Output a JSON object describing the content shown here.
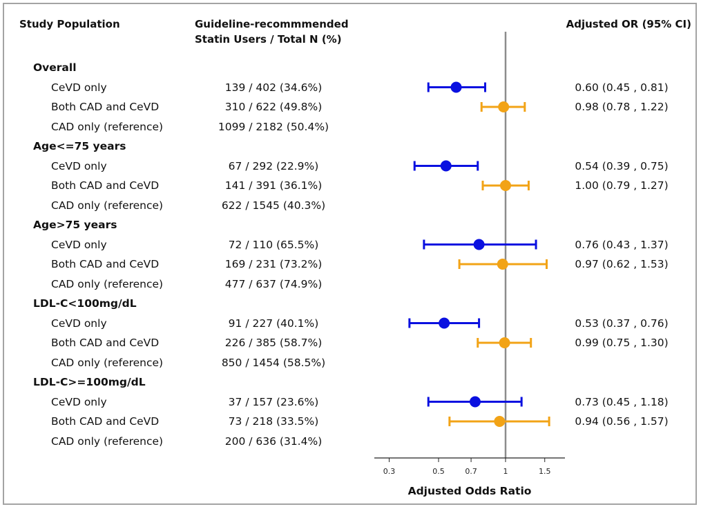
{
  "headers": {
    "population": "Study Population",
    "statin_line1": "Guideline-recommmended",
    "statin_line2": "Statin Users / Total N (%)",
    "or": "Adjusted OR (95% CI)"
  },
  "colors": {
    "cevd": "#0a10e0",
    "both": "#f2a316",
    "refline": "#8c8c8c",
    "frame": "#a3a3a3"
  },
  "rows": [
    {
      "type": "group",
      "label": "Overall"
    },
    {
      "type": "item",
      "label": "CeVD only",
      "count": "139 / 402 (34.6%)",
      "or_text": "0.60 (0.45 , 0.81)"
    },
    {
      "type": "item",
      "label": "Both CAD and CeVD",
      "count": "310 / 622 (49.8%)",
      "or_text": "0.98 (0.78 , 1.22)"
    },
    {
      "type": "item",
      "label": "CAD only (reference)",
      "count": "1099 / 2182 (50.4%)",
      "or_text": ""
    },
    {
      "type": "group",
      "label": "Age<=75 years"
    },
    {
      "type": "item",
      "label": "CeVD only",
      "count": "67 / 292 (22.9%)",
      "or_text": "0.54 (0.39 , 0.75)"
    },
    {
      "type": "item",
      "label": "Both CAD and CeVD",
      "count": "141 / 391 (36.1%)",
      "or_text": "1.00 (0.79 , 1.27)"
    },
    {
      "type": "item",
      "label": "CAD only (reference)",
      "count": "622 / 1545 (40.3%)",
      "or_text": ""
    },
    {
      "type": "group",
      "label": "Age>75 years"
    },
    {
      "type": "item",
      "label": "CeVD only",
      "count": "72 / 110 (65.5%)",
      "or_text": "0.76 (0.43 , 1.37)"
    },
    {
      "type": "item",
      "label": "Both CAD and CeVD",
      "count": "169 / 231 (73.2%)",
      "or_text": "0.97 (0.62 , 1.53)"
    },
    {
      "type": "item",
      "label": "CAD only (reference)",
      "count": "477 / 637 (74.9%)",
      "or_text": ""
    },
    {
      "type": "group",
      "label": "LDL-C<100mg/dL"
    },
    {
      "type": "item",
      "label": "CeVD only",
      "count": "91 / 227 (40.1%)",
      "or_text": "0.53 (0.37 , 0.76)"
    },
    {
      "type": "item",
      "label": "Both CAD and CeVD",
      "count": "226 / 385 (58.7%)",
      "or_text": "0.99 (0.75 , 1.30)"
    },
    {
      "type": "item",
      "label": "CAD only (reference)",
      "count": "850 / 1454 (58.5%)",
      "or_text": ""
    },
    {
      "type": "group",
      "label": "LDL-C>=100mg/dL"
    },
    {
      "type": "item",
      "label": "CeVD only",
      "count": "37 / 157 (23.6%)",
      "or_text": "0.73 (0.45 , 1.18)"
    },
    {
      "type": "item",
      "label": "Both CAD and CeVD",
      "count": "73 / 218 (33.5%)",
      "or_text": "0.94 (0.56 , 1.57)"
    },
    {
      "type": "item",
      "label": "CAD only (reference)",
      "count": "200 / 636 (31.4%)",
      "or_text": ""
    }
  ],
  "chart_data": {
    "type": "scatter",
    "subtype": "forest",
    "xlabel": "Adjusted Odds Ratio",
    "xscale": "log",
    "xlim": [
      0.25,
      1.7
    ],
    "xticks": [
      0.3,
      0.5,
      0.7,
      1,
      1.5
    ],
    "xtick_labels": [
      "0.3",
      "0.5",
      "0.7",
      "1",
      "1.5"
    ],
    "reference_line": 1,
    "series": [
      {
        "name": "CeVD only",
        "color": "#0a10e0",
        "points": [
          {
            "group": "Overall",
            "or": 0.6,
            "lo": 0.45,
            "hi": 0.81
          },
          {
            "group": "Age<=75 years",
            "or": 0.54,
            "lo": 0.39,
            "hi": 0.75
          },
          {
            "group": "Age>75 years",
            "or": 0.76,
            "lo": 0.43,
            "hi": 1.37
          },
          {
            "group": "LDL-C<100mg/dL",
            "or": 0.53,
            "lo": 0.37,
            "hi": 0.76
          },
          {
            "group": "LDL-C>=100mg/dL",
            "or": 0.73,
            "lo": 0.45,
            "hi": 1.18
          }
        ]
      },
      {
        "name": "Both CAD and CeVD",
        "color": "#f2a316",
        "points": [
          {
            "group": "Overall",
            "or": 0.98,
            "lo": 0.78,
            "hi": 1.22
          },
          {
            "group": "Age<=75 years",
            "or": 1.0,
            "lo": 0.79,
            "hi": 1.27
          },
          {
            "group": "Age>75 years",
            "or": 0.97,
            "lo": 0.62,
            "hi": 1.53
          },
          {
            "group": "LDL-C<100mg/dL",
            "or": 0.99,
            "lo": 0.75,
            "hi": 1.3
          },
          {
            "group": "LDL-C>=100mg/dL",
            "or": 0.94,
            "lo": 0.56,
            "hi": 1.57
          }
        ]
      }
    ]
  }
}
